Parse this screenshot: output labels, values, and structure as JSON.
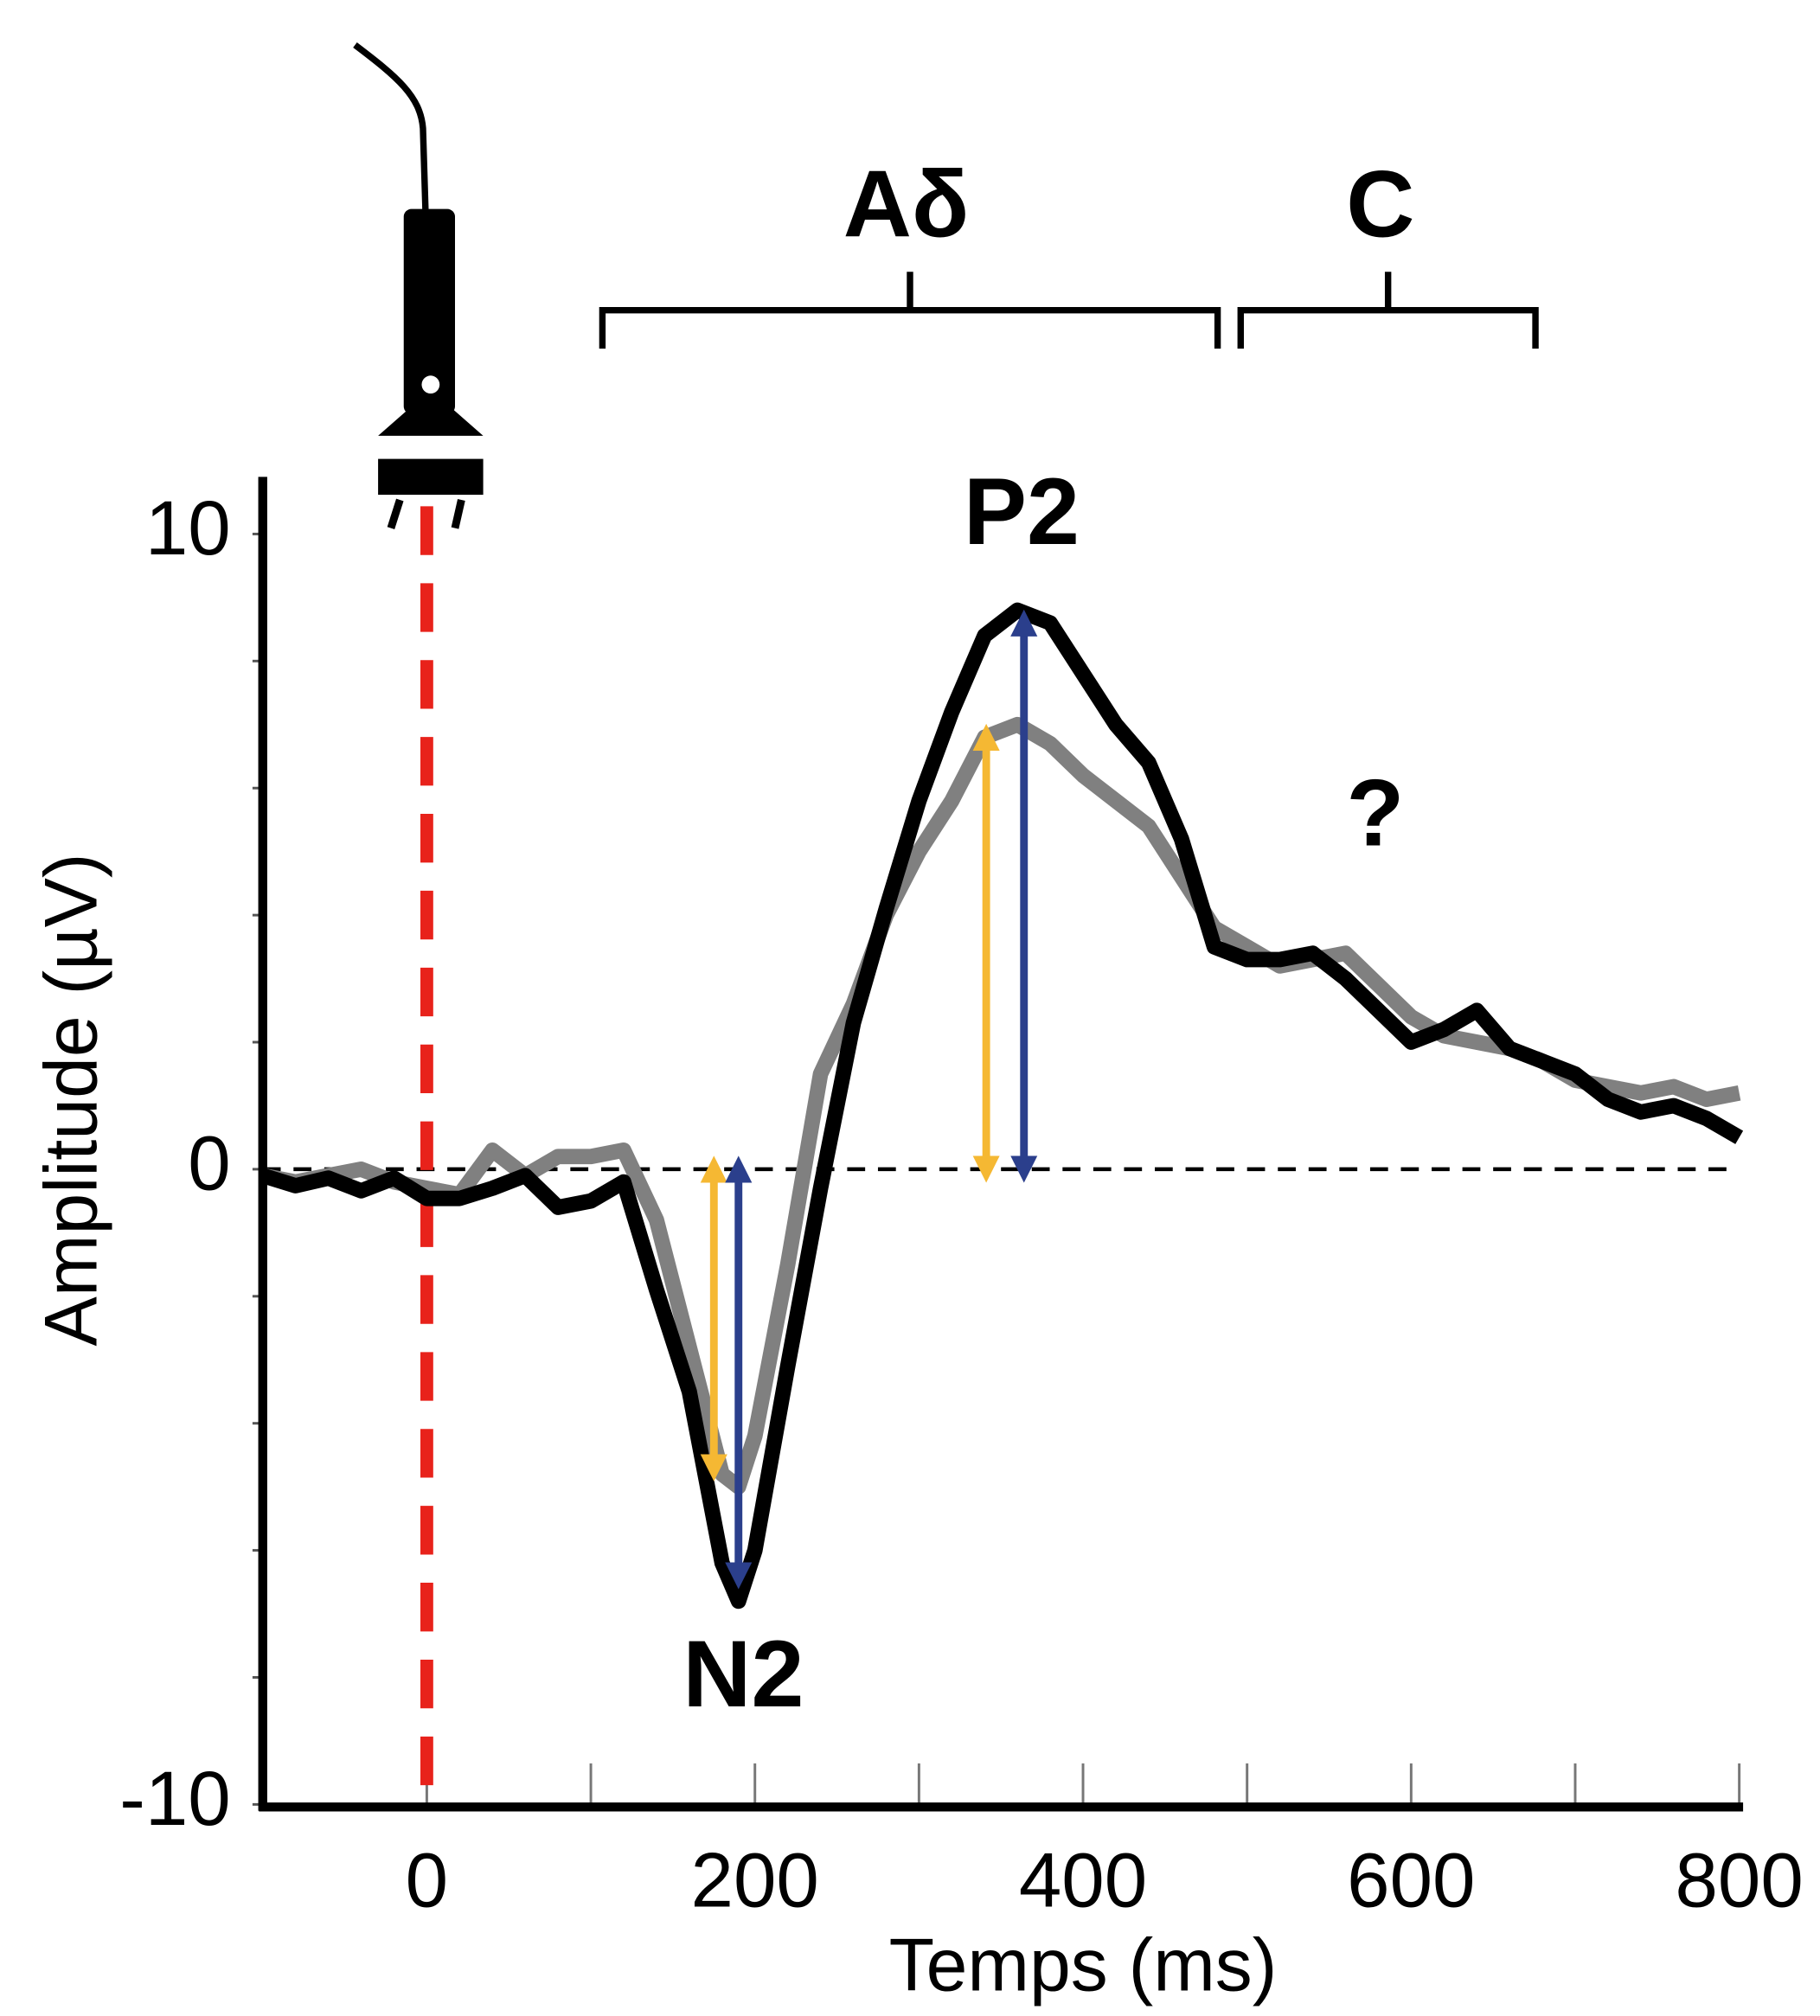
{
  "chart_data": {
    "type": "line",
    "xlabel": "Temps (ms)",
    "ylabel": "Amplitude (µV)",
    "x": [
      -100,
      -80,
      -60,
      -40,
      -20,
      0,
      20,
      40,
      60,
      80,
      100,
      120,
      140,
      160,
      180,
      190,
      200,
      220,
      240,
      260,
      280,
      300,
      320,
      340,
      360,
      380,
      400,
      420,
      440,
      460,
      480,
      500,
      520,
      540,
      560,
      580,
      600,
      620,
      640,
      660,
      680,
      700,
      720,
      740,
      760,
      780,
      800
    ],
    "series": [
      {
        "color": "#808080",
        "values": [
          -0.1,
          -0.2,
          -0.1,
          0,
          -0.2,
          -0.3,
          -0.4,
          0.3,
          -0.1,
          0.2,
          0.2,
          0.3,
          -0.8,
          -2.8,
          -4.8,
          -5.0,
          -4.2,
          -1.5,
          1.5,
          2.6,
          4.0,
          5.0,
          5.8,
          6.8,
          7.0,
          6.7,
          6.2,
          5.8,
          5.4,
          4.6,
          3.8,
          3.5,
          3.2,
          3.3,
          3.4,
          2.9,
          2.4,
          2.1,
          2.0,
          1.9,
          1.7,
          1.4,
          1.3,
          1.2,
          1.3,
          1.1,
          1.2
        ]
      },
      {
        "color": "#000000",
        "values": [
          -0.1,
          -0.26,
          -0.14,
          -0.34,
          -0.14,
          -0.46,
          -0.46,
          -0.3,
          -0.1,
          -0.6,
          -0.5,
          -0.2,
          -1.9,
          -3.5,
          -6.2,
          -6.8,
          -6.0,
          -3.1,
          -0.3,
          2.3,
          4.1,
          5.8,
          7.2,
          8.4,
          8.8,
          8.6,
          7.8,
          7.0,
          6.4,
          5.2,
          3.5,
          3.3,
          3.3,
          3.4,
          3.0,
          2.5,
          2.0,
          2.2,
          2.5,
          1.9,
          1.7,
          1.5,
          1.1,
          0.9,
          1.0,
          0.8,
          0.5
        ]
      }
    ],
    "amplitude_arrows": [
      {
        "color": "#f5b833",
        "x": 175,
        "values": [
          0,
          -4.7
        ]
      },
      {
        "color": "#2b3f8c",
        "x": 190,
        "values": [
          0,
          -6.4
        ]
      },
      {
        "color": "#f5b833",
        "x": 341,
        "values": [
          0,
          6.8
        ]
      },
      {
        "color": "#2b3f8c",
        "x": 364,
        "values": [
          0,
          8.6
        ]
      }
    ],
    "annotations": [
      "Aδ",
      "C",
      "P2",
      "N2",
      "?"
    ],
    "xlim": [
      -100,
      800
    ],
    "xticks": [
      0,
      200,
      400,
      600,
      800
    ],
    "xminor_ticks": [
      100,
      300,
      500,
      700
    ],
    "ylim": [
      -10,
      10.9
    ],
    "yticks": [
      -10,
      0,
      10
    ],
    "yminor_ticks": [
      -8,
      -6,
      -4,
      -2,
      2,
      4,
      6,
      8
    ],
    "onset": 0,
    "onset_color": "#e8221b"
  }
}
